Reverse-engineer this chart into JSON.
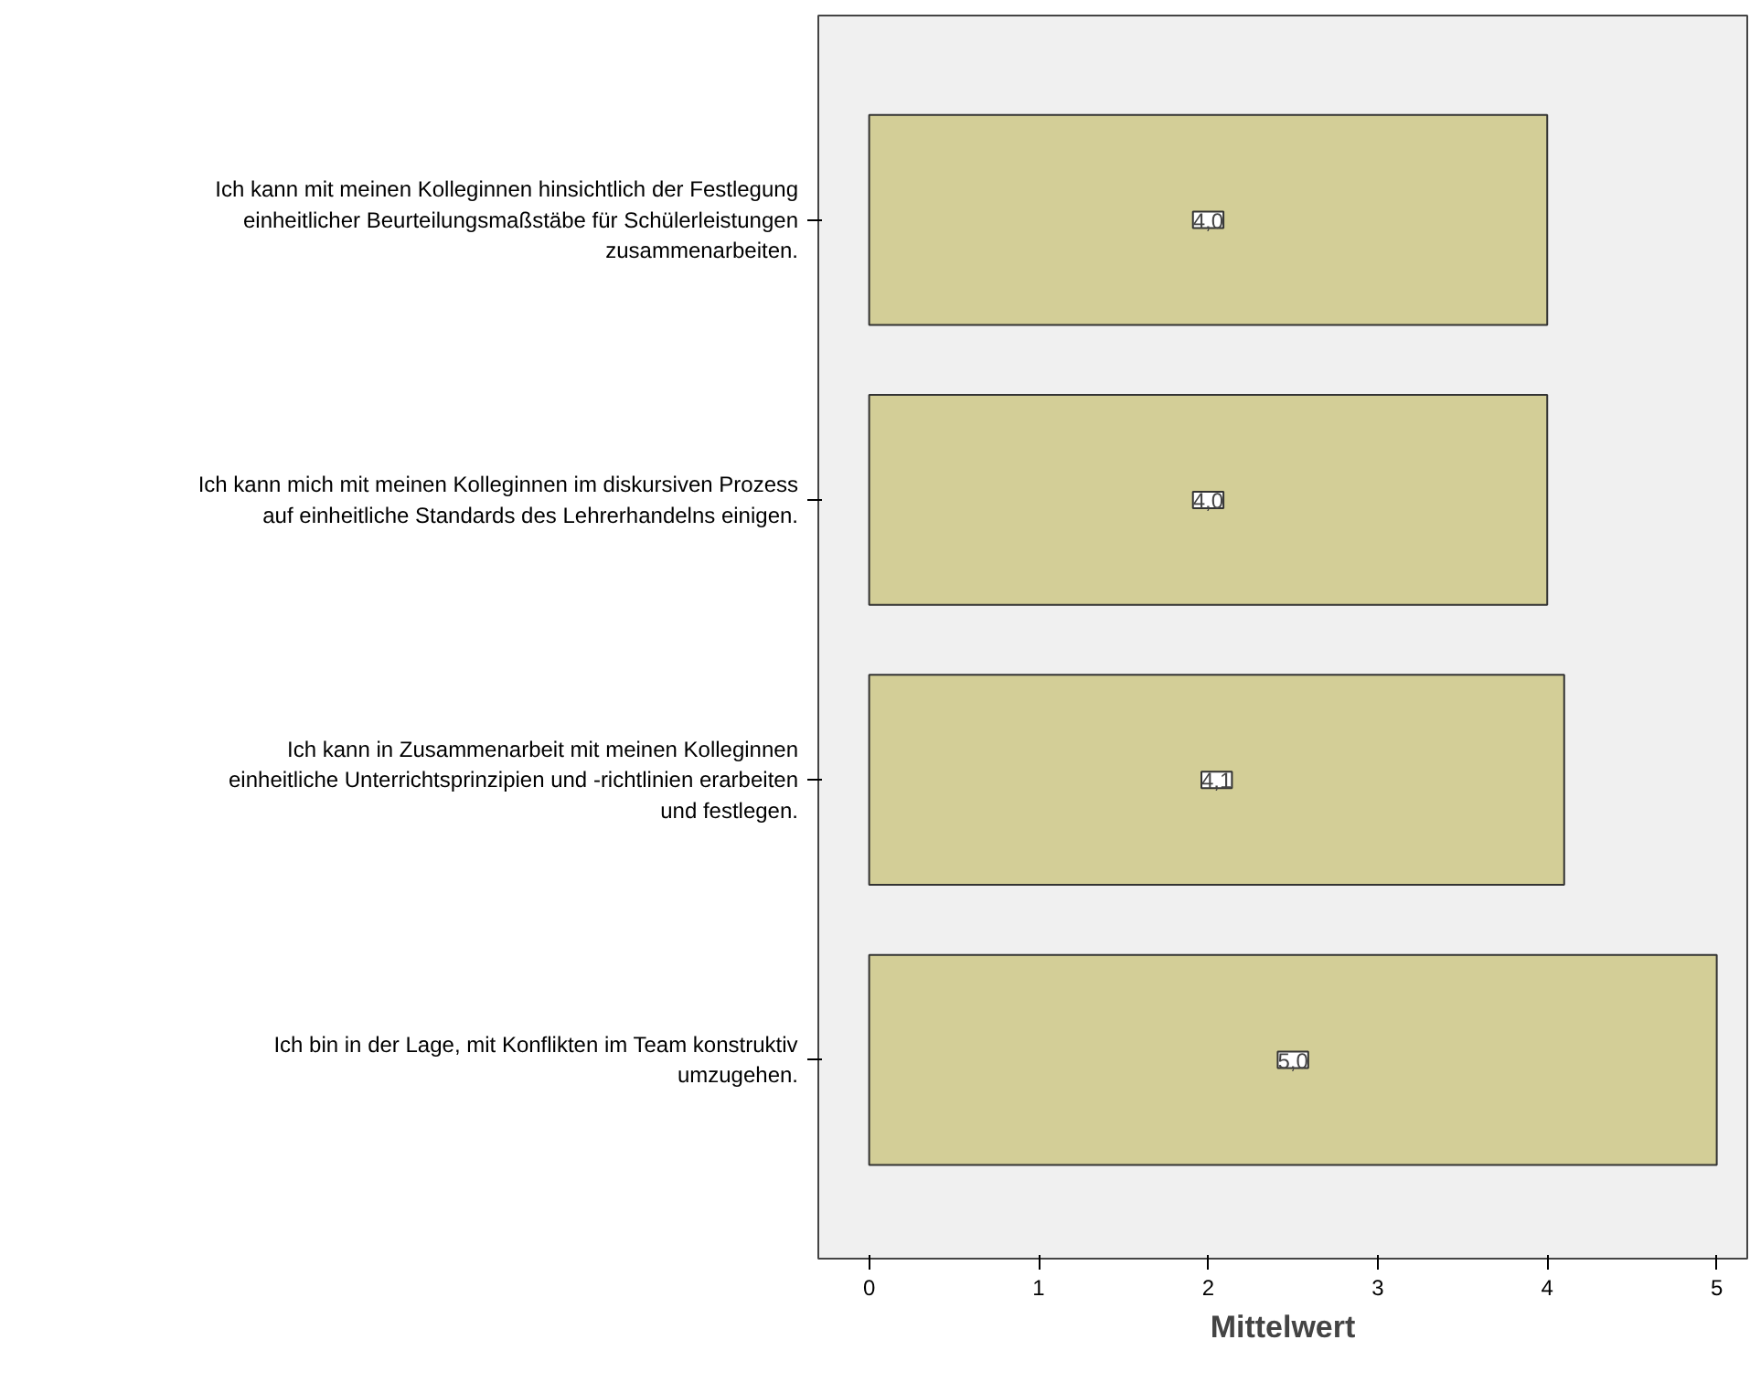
{
  "chart_data": {
    "type": "bar",
    "orientation": "horizontal",
    "xlabel": "Mittelwert",
    "categories": [
      "Ich kann mit meinen Kolleginnen hinsichtlich der Festlegung\neinheitlicher Beurteilungsmaßstäbe für Schülerleistungen\nzusammenarbeiten.",
      "Ich kann mich mit meinen Kolleginnen im diskursiven Prozess\nauf einheitliche Standards des Lehrerhandelns einigen.",
      "Ich kann in Zusammenarbeit mit meinen Kolleginnen\neinheitliche Unterrichtsprinzipien und -richtlinien erarbeiten\nund festlegen.",
      "Ich bin in der Lage, mit Konflikten im Team konstruktiv\numzugehen."
    ],
    "values": [
      4.0,
      4.0,
      4.1,
      5.0
    ],
    "value_labels": [
      "4,0",
      "4,0",
      "4,1",
      "5,0"
    ],
    "color": "#d3ce97",
    "xlim": [
      -0.3,
      5.18
    ],
    "xticks": [
      0,
      1,
      2,
      3,
      4,
      5
    ],
    "grid": false
  }
}
